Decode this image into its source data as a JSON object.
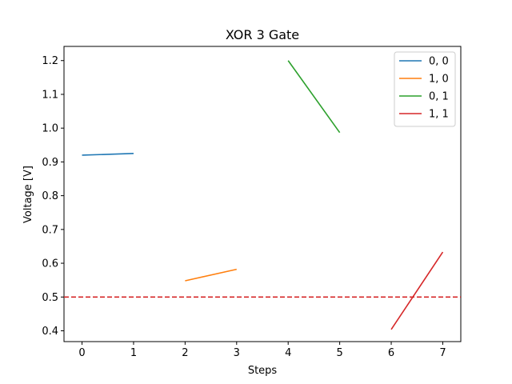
{
  "chart_data": {
    "type": "line",
    "title": "XOR 3 Gate",
    "xlabel": "Steps",
    "ylabel": "Voltage [V]",
    "xlim": [
      -0.35,
      7.35
    ],
    "ylim": [
      0.368,
      1.242
    ],
    "xticks": [
      0,
      1,
      2,
      3,
      4,
      5,
      6,
      7
    ],
    "yticks": [
      0.4,
      0.5,
      0.6,
      0.7,
      0.8,
      0.9,
      1.0,
      1.1,
      1.2
    ],
    "ytick_labels": [
      "0.4",
      "0.5",
      "0.6",
      "0.7",
      "0.8",
      "0.9",
      "1.0",
      "1.1",
      "1.2"
    ],
    "grid": false,
    "legend_position": "top-right",
    "series": [
      {
        "name": "0, 0",
        "color": "#1f77b4",
        "x": [
          0,
          1
        ],
        "y": [
          0.92,
          0.925
        ]
      },
      {
        "name": "1, 0",
        "color": "#ff7f0e",
        "x": [
          2,
          3
        ],
        "y": [
          0.548,
          0.582
        ]
      },
      {
        "name": "0, 1",
        "color": "#2ca02c",
        "x": [
          4,
          5
        ],
        "y": [
          1.2,
          0.987
        ]
      },
      {
        "name": "1, 1",
        "color": "#d62728",
        "x": [
          6,
          7
        ],
        "y": [
          0.404,
          0.633
        ]
      }
    ],
    "threshold": {
      "y": 0.5,
      "color": "#d62728",
      "style": "dashed"
    }
  }
}
